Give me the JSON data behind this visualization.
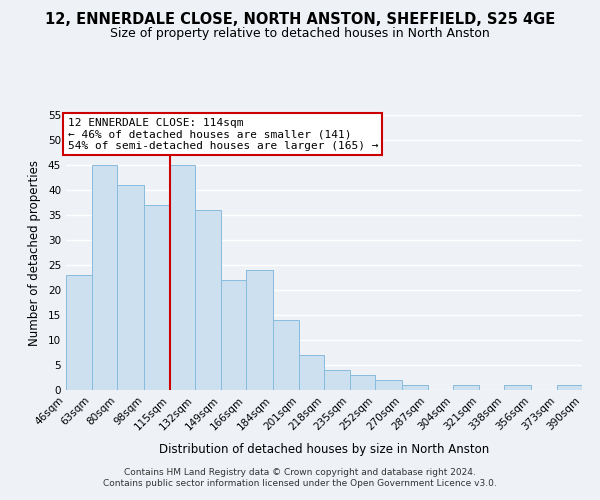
{
  "title1": "12, ENNERDALE CLOSE, NORTH ANSTON, SHEFFIELD, S25 4GE",
  "title2": "Size of property relative to detached houses in North Anston",
  "xlabel": "Distribution of detached houses by size in North Anston",
  "ylabel": "Number of detached properties",
  "footer1": "Contains HM Land Registry data © Crown copyright and database right 2024.",
  "footer2": "Contains public sector information licensed under the Open Government Licence v3.0.",
  "bin_edges": [
    46,
    63,
    80,
    98,
    115,
    132,
    149,
    166,
    184,
    201,
    218,
    235,
    252,
    270,
    287,
    304,
    321,
    338,
    356,
    373,
    390
  ],
  "bin_labels": [
    "46sqm",
    "63sqm",
    "80sqm",
    "98sqm",
    "115sqm",
    "132sqm",
    "149sqm",
    "166sqm",
    "184sqm",
    "201sqm",
    "218sqm",
    "235sqm",
    "252sqm",
    "270sqm",
    "287sqm",
    "304sqm",
    "321sqm",
    "338sqm",
    "356sqm",
    "373sqm",
    "390sqm"
  ],
  "counts": [
    23,
    45,
    41,
    37,
    45,
    36,
    22,
    24,
    14,
    7,
    4,
    3,
    2,
    1,
    0,
    1,
    0,
    1,
    0,
    1
  ],
  "bar_color": "#cce0f0",
  "bar_edge_color": "#88bbdd",
  "vline_bin_index": 4,
  "vline_color": "#cc0000",
  "annotation_title": "12 ENNERDALE CLOSE: 114sqm",
  "annotation_line1": "← 46% of detached houses are smaller (141)",
  "annotation_line2": "54% of semi-detached houses are larger (165) →",
  "annotation_box_facecolor": "#ffffff",
  "annotation_box_edgecolor": "#cc0000",
  "ylim": [
    0,
    55
  ],
  "yticks": [
    0,
    5,
    10,
    15,
    20,
    25,
    30,
    35,
    40,
    45,
    50,
    55
  ],
  "background_color": "#eef2f7",
  "grid_color": "#ffffff",
  "title1_fontsize": 10.5,
  "title2_fontsize": 9,
  "axis_label_fontsize": 8.5,
  "tick_fontsize": 7.5,
  "footer_fontsize": 6.5
}
